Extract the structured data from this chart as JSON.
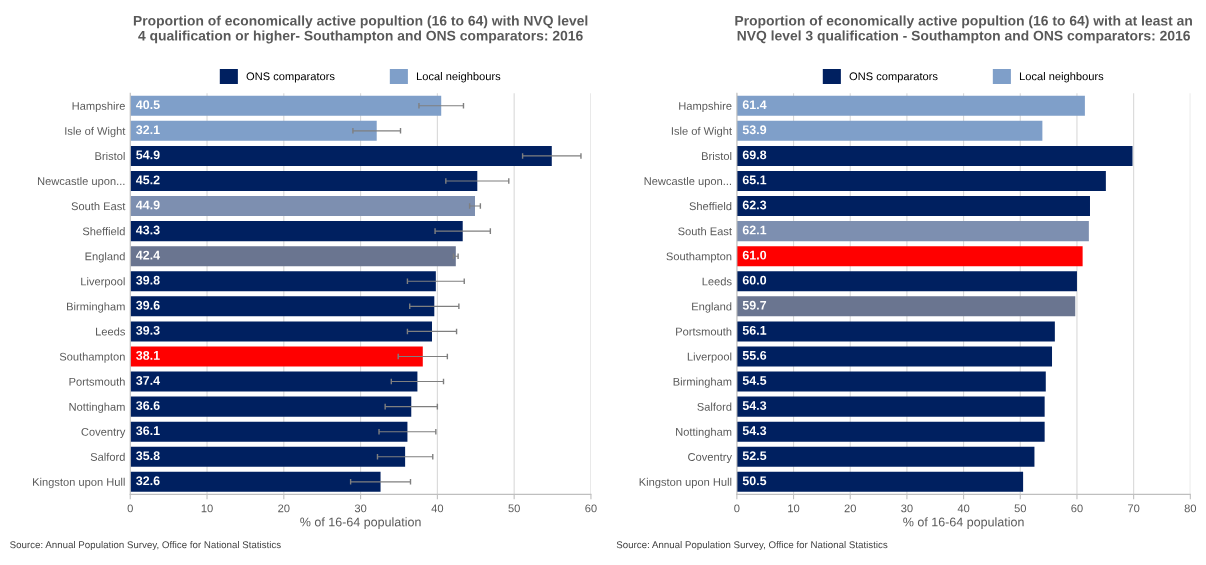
{
  "chart_data": [
    {
      "type": "bar",
      "orientation": "horizontal",
      "title": "Proportion of economically active popultion (16 to 64) with NVQ level\n4 qualification or higher- Southampton and ONS comparators: 2016",
      "xlabel": "% of 16-64 population",
      "categories": [
        "Hampshire",
        "Isle of Wight",
        "Bristol",
        "Newcastle upon...",
        "South East",
        "Sheffield",
        "England",
        "Liverpool",
        "Birmingham",
        "Leeds",
        "Southampton",
        "Portsmouth",
        "Nottingham",
        "Coventry",
        "Salford",
        "Kingston upon Hull"
      ],
      "series": [
        {
          "name": "ONS comparators",
          "color": "#002060",
          "values": [
            null,
            null,
            54.9,
            45.2,
            null,
            43.3,
            null,
            39.8,
            39.6,
            39.3,
            null,
            37.4,
            36.6,
            36.1,
            35.8,
            32.6
          ],
          "errors": [
            null,
            null,
            3.8,
            4.1,
            null,
            3.6,
            null,
            3.7,
            3.2,
            3.2,
            null,
            3.4,
            3.4,
            3.7,
            3.6,
            3.9
          ]
        },
        {
          "name": "Local neighbours",
          "color": "#7f9fc9",
          "values": [
            40.5,
            32.1,
            null,
            null,
            null,
            null,
            null,
            null,
            null,
            null,
            null,
            null,
            null,
            null,
            null,
            null
          ],
          "errors": [
            2.9,
            3.1,
            null,
            null,
            null,
            null,
            null,
            null,
            null,
            null,
            null,
            null,
            null,
            null,
            null,
            null
          ]
        },
        {
          "color": "#7d8fb0",
          "values": [
            null,
            null,
            null,
            null,
            44.9,
            null,
            null,
            null,
            null,
            null,
            null,
            null,
            null,
            null,
            null,
            null
          ],
          "errors": [
            null,
            null,
            null,
            null,
            0.7,
            null,
            null,
            null,
            null,
            null,
            null,
            null,
            null,
            null,
            null,
            null
          ]
        },
        {
          "color": "#6a7590",
          "values": [
            null,
            null,
            null,
            null,
            null,
            null,
            42.4,
            null,
            null,
            null,
            null,
            null,
            null,
            null,
            null,
            null
          ],
          "errors": [
            null,
            null,
            null,
            null,
            null,
            null,
            0.3,
            null,
            null,
            null,
            null,
            null,
            null,
            null,
            null,
            null
          ]
        },
        {
          "color": "#ff0000",
          "values": [
            null,
            null,
            null,
            null,
            null,
            null,
            null,
            null,
            null,
            null,
            38.1,
            null,
            null,
            null,
            null,
            null
          ],
          "errors": [
            null,
            null,
            null,
            null,
            null,
            null,
            null,
            null,
            null,
            null,
            3.2,
            null,
            null,
            null,
            null,
            null
          ]
        }
      ],
      "xlim": [
        0,
        60
      ],
      "xticks": [
        0,
        10,
        20,
        30,
        40,
        50,
        60
      ],
      "grid": "x",
      "legend": "top",
      "data_labels": true,
      "annotations": [
        "Source: Annual Population Survey, Office for National Statistics"
      ]
    },
    {
      "type": "bar",
      "orientation": "horizontal",
      "title": "Proportion of economically active popultion (16 to 64) with at least an\nNVQ level 3 qualification - Southampton and ONS comparators: 2016",
      "xlabel": "% of 16-64 population",
      "categories": [
        "Hampshire",
        "Isle of Wight",
        "Bristol",
        "Newcastle upon...",
        "Sheffield",
        "South East",
        "Southampton",
        "Leeds",
        "England",
        "Portsmouth",
        "Liverpool",
        "Birmingham",
        "Salford",
        "Nottingham",
        "Coventry",
        "Kingston upon Hull"
      ],
      "series": [
        {
          "name": "ONS comparators",
          "color": "#002060",
          "values": [
            null,
            null,
            69.8,
            65.1,
            62.3,
            null,
            null,
            60.0,
            null,
            56.1,
            55.6,
            54.5,
            54.3,
            54.3,
            52.5,
            50.5
          ],
          "value_labels": [
            null,
            null,
            "69.8",
            "65.1",
            "62.3",
            null,
            null,
            "60.0",
            null,
            "56.1",
            "55.6",
            "54.5",
            "54.3",
            "54.3",
            "52.5",
            "50.5"
          ]
        },
        {
          "name": "Local neighbours",
          "color": "#7f9fc9",
          "values": [
            61.4,
            53.9,
            null,
            null,
            null,
            null,
            null,
            null,
            null,
            null,
            null,
            null,
            null,
            null,
            null,
            null
          ]
        },
        {
          "color": "#7d8fb0",
          "values": [
            null,
            null,
            null,
            null,
            null,
            62.1,
            null,
            null,
            null,
            null,
            null,
            null,
            null,
            null,
            null,
            null
          ]
        },
        {
          "color": "#ff0000",
          "values": [
            null,
            null,
            null,
            null,
            null,
            null,
            61.0,
            null,
            null,
            null,
            null,
            null,
            null,
            null,
            null,
            null
          ],
          "value_labels": [
            null,
            null,
            null,
            null,
            null,
            null,
            "61.0",
            null,
            null,
            null,
            null,
            null,
            null,
            null,
            null,
            null
          ]
        },
        {
          "color": "#6a7590",
          "values": [
            null,
            null,
            null,
            null,
            null,
            null,
            null,
            null,
            59.7,
            null,
            null,
            null,
            null,
            null,
            null,
            null
          ]
        }
      ],
      "xlim": [
        0,
        80
      ],
      "xticks": [
        0,
        10,
        20,
        30,
        40,
        50,
        60,
        70,
        80
      ],
      "grid": "x",
      "legend": "top",
      "data_labels": true,
      "annotations": [
        "Source: Annual Population Survey, Office for National Statistics"
      ]
    }
  ]
}
